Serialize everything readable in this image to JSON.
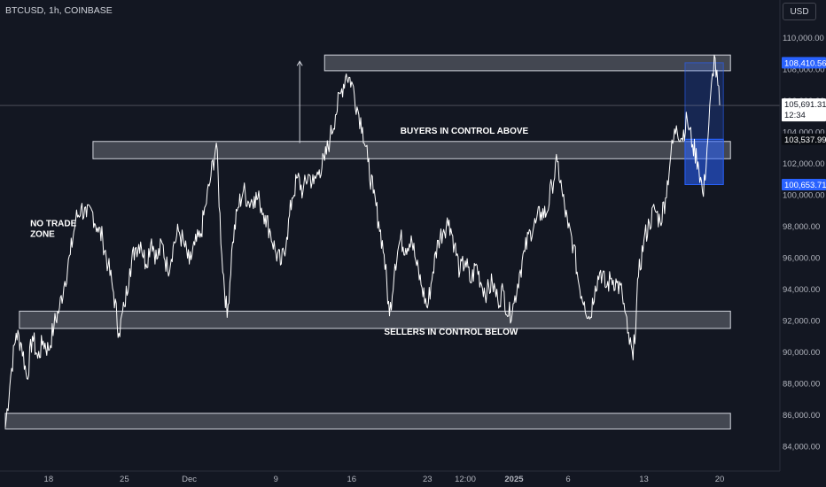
{
  "header": {
    "symbol": "BTCUSD, 1h, COINBASE",
    "currency": "USD"
  },
  "colors": {
    "background": "#131722",
    "price_line": "#ffffff",
    "zone_fill": "#6b6f78",
    "zone_stroke": "#d1d4dc",
    "position_box": "#2962ff",
    "label_blue": "#2962ff",
    "label_dark": "#0b0e14",
    "label_light": "#ffffff",
    "axis_text": "#b2b5be"
  },
  "chart_data": {
    "type": "line",
    "ylim": [
      84000,
      110600
    ],
    "x_range_days": [
      0,
      67
    ],
    "y_ticks": [
      "110,000.00",
      "108,000.00",
      "106,000.00",
      "104,000.00",
      "102,000.00",
      "100,000.00",
      "98,000.00",
      "96,000.00",
      "94,000.00",
      "92,000.00",
      "90,000.00",
      "88,000.00",
      "86,000.00",
      "84,000.00"
    ],
    "y_tick_values": [
      110000,
      108000,
      106000,
      104000,
      102000,
      100000,
      98000,
      96000,
      94000,
      92000,
      90000,
      88000,
      86000,
      84000
    ],
    "x_ticks": [
      {
        "label": "18",
        "day": 4
      },
      {
        "label": "25",
        "day": 11
      },
      {
        "label": "Dec",
        "day": 17
      },
      {
        "label": "9",
        "day": 25
      },
      {
        "label": "16",
        "day": 32
      },
      {
        "label": "23",
        "day": 39
      },
      {
        "label": "12:00",
        "day": 42.5
      },
      {
        "label": "2025",
        "day": 47
      },
      {
        "label": "6",
        "day": 52
      },
      {
        "label": "13",
        "day": 59
      },
      {
        "label": "20",
        "day": 66
      }
    ],
    "series": [
      {
        "points": [
          [
            0,
            85200
          ],
          [
            0.5,
            88500
          ],
          [
            1,
            91200
          ],
          [
            1.5,
            90500
          ],
          [
            2,
            88300
          ],
          [
            2.5,
            91000
          ],
          [
            3,
            89600
          ],
          [
            3.5,
            90700
          ],
          [
            4,
            90100
          ],
          [
            4.5,
            91700
          ],
          [
            5,
            92800
          ],
          [
            5.5,
            94500
          ],
          [
            6,
            96200
          ],
          [
            6.5,
            98400
          ],
          [
            7,
            99200
          ],
          [
            7.5,
            98600
          ],
          [
            8,
            99000
          ],
          [
            8.5,
            97900
          ],
          [
            9,
            97200
          ],
          [
            9.5,
            95500
          ],
          [
            10,
            93800
          ],
          [
            10.5,
            91200
          ],
          [
            11,
            92900
          ],
          [
            11.5,
            95300
          ],
          [
            12,
            96600
          ],
          [
            12.5,
            97000
          ],
          [
            13,
            95600
          ],
          [
            13.5,
            97200
          ],
          [
            14,
            95900
          ],
          [
            14.5,
            96900
          ],
          [
            15,
            95200
          ],
          [
            15.5,
            96700
          ],
          [
            16,
            97700
          ],
          [
            16.5,
            96900
          ],
          [
            17,
            95600
          ],
          [
            17.5,
            96800
          ],
          [
            18,
            97300
          ],
          [
            18.5,
            99300
          ],
          [
            19,
            101200
          ],
          [
            19.5,
            103300
          ],
          [
            20,
            96200
          ],
          [
            20.5,
            92200
          ],
          [
            21,
            97000
          ],
          [
            21.5,
            99200
          ],
          [
            22,
            100300
          ],
          [
            22.5,
            99500
          ],
          [
            23,
            99900
          ],
          [
            23.5,
            99600
          ],
          [
            24,
            98700
          ],
          [
            24.5,
            97600
          ],
          [
            25,
            96300
          ],
          [
            25.5,
            95600
          ],
          [
            26,
            97300
          ],
          [
            26.5,
            99800
          ],
          [
            27,
            101100
          ],
          [
            27.5,
            100200
          ],
          [
            28,
            101300
          ],
          [
            28.5,
            100700
          ],
          [
            29,
            101600
          ],
          [
            29.5,
            102200
          ],
          [
            30,
            103600
          ],
          [
            30.5,
            105100
          ],
          [
            31,
            106500
          ],
          [
            31.5,
            107700
          ],
          [
            32,
            107200
          ],
          [
            32.5,
            105600
          ],
          [
            33,
            104300
          ],
          [
            33.5,
            102100
          ],
          [
            34,
            100100
          ],
          [
            34.5,
            98300
          ],
          [
            35,
            96200
          ],
          [
            35.5,
            92300
          ],
          [
            36,
            95600
          ],
          [
            36.5,
            97200
          ],
          [
            37,
            96600
          ],
          [
            37.5,
            97400
          ],
          [
            38,
            95500
          ],
          [
            38.5,
            94100
          ],
          [
            39,
            92800
          ],
          [
            39.5,
            95100
          ],
          [
            40,
            97100
          ],
          [
            40.5,
            97800
          ],
          [
            41,
            98400
          ],
          [
            41.5,
            96800
          ],
          [
            42,
            95100
          ],
          [
            42.5,
            95800
          ],
          [
            43,
            94400
          ],
          [
            43.5,
            95600
          ],
          [
            44,
            94300
          ],
          [
            44.5,
            93800
          ],
          [
            45,
            94400
          ],
          [
            45.5,
            93300
          ],
          [
            46,
            93900
          ],
          [
            46.5,
            92300
          ],
          [
            47,
            93100
          ],
          [
            47.5,
            95000
          ],
          [
            48,
            96400
          ],
          [
            48.5,
            97700
          ],
          [
            49,
            98200
          ],
          [
            49.5,
            98900
          ],
          [
            50,
            98800
          ],
          [
            50.5,
            100600
          ],
          [
            51,
            102100
          ],
          [
            51.5,
            99900
          ],
          [
            52,
            97900
          ],
          [
            52.5,
            96800
          ],
          [
            53,
            94300
          ],
          [
            53.5,
            93200
          ],
          [
            54,
            92100
          ],
          [
            54.5,
            94200
          ],
          [
            55,
            95200
          ],
          [
            55.5,
            94100
          ],
          [
            56,
            94700
          ],
          [
            56.5,
            94400
          ],
          [
            57,
            93700
          ],
          [
            57.5,
            91200
          ],
          [
            58,
            89500
          ],
          [
            58.5,
            94800
          ],
          [
            59,
            97100
          ],
          [
            59.5,
            98200
          ],
          [
            60,
            99100
          ],
          [
            60.5,
            98300
          ],
          [
            61,
            99800
          ],
          [
            61.5,
            102600
          ],
          [
            62,
            104400
          ],
          [
            62.5,
            103600
          ],
          [
            63,
            104800
          ],
          [
            63.5,
            103200
          ],
          [
            64,
            102100
          ],
          [
            64.5,
            99900
          ],
          [
            65,
            104500
          ],
          [
            65.5,
            108900
          ],
          [
            66,
            105700
          ]
        ]
      }
    ],
    "zones": [
      {
        "from": 107900,
        "to": 108900,
        "day_start": 29.5,
        "day_end": 67
      },
      {
        "from": 102300,
        "to": 103400,
        "day_start": 8.1,
        "day_end": 67
      },
      {
        "from": 91500,
        "to": 92600,
        "day_start": 1.3,
        "day_end": 67
      },
      {
        "from": 85100,
        "to": 86100,
        "day_start": 0,
        "day_end": 67
      }
    ],
    "annotations": [
      {
        "text": "NO TRADE\nZONE",
        "day": 2.3,
        "y": 98000
      },
      {
        "text": "BUYERS IN CONTROL ABOVE",
        "day": 36.5,
        "y": 103900
      },
      {
        "text": "SELLERS IN CONTROL BELOW",
        "day": 35,
        "y": 91100
      }
    ],
    "arrow": {
      "day": 27.2,
      "from": 103300,
      "to": 108500
    },
    "position": {
      "day_start": 62.8,
      "day_end": 67,
      "target": 108410.56,
      "entry": 103537.99,
      "stop": 100653.71
    },
    "last_price": 105691.31,
    "countdown": "12:34",
    "price_labels": [
      {
        "text": "108,410.56",
        "value": 108410.56,
        "style": "blue"
      },
      {
        "text": "105,691.31",
        "value": 105691.31,
        "style": "light",
        "sub": "12:34"
      },
      {
        "text": "103,537.99",
        "value": 103537.99,
        "style": "dark"
      },
      {
        "text": "100,653.71",
        "value": 100653.71,
        "style": "blue"
      }
    ]
  }
}
